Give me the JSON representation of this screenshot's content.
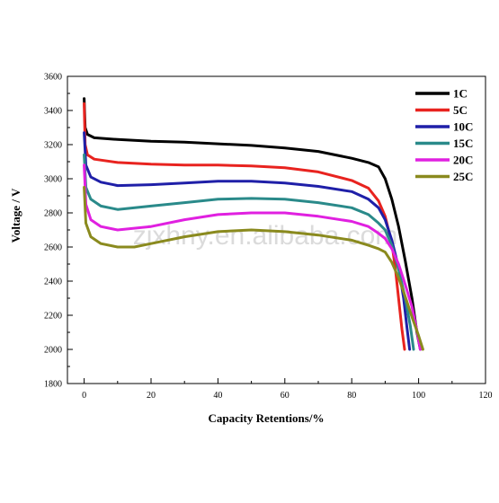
{
  "chart_data": {
    "type": "line",
    "xlabel": "Capacity Retentions/%",
    "ylabel": "Voltage / V",
    "xlim": [
      -5,
      120
    ],
    "ylim": [
      1800,
      3600
    ],
    "x_ticks": [
      0,
      20,
      40,
      60,
      80,
      100,
      120
    ],
    "y_ticks": [
      1800,
      2000,
      2200,
      2400,
      2600,
      2800,
      3000,
      3200,
      3400,
      3600
    ],
    "grid": false,
    "legend_position": "top-right",
    "watermark": "zjxhny.en.alibaba.com",
    "series": [
      {
        "name": "1C",
        "color": "#000000",
        "points": [
          [
            0,
            3470
          ],
          [
            0.3,
            3300
          ],
          [
            1,
            3260
          ],
          [
            3,
            3240
          ],
          [
            10,
            3230
          ],
          [
            20,
            3220
          ],
          [
            30,
            3215
          ],
          [
            40,
            3205
          ],
          [
            50,
            3195
          ],
          [
            60,
            3180
          ],
          [
            70,
            3160
          ],
          [
            80,
            3120
          ],
          [
            85,
            3095
          ],
          [
            88,
            3070
          ],
          [
            90,
            3000
          ],
          [
            92,
            2880
          ],
          [
            94,
            2720
          ],
          [
            96,
            2520
          ],
          [
            98,
            2300
          ],
          [
            99.5,
            2100
          ],
          [
            100.5,
            2000
          ]
        ]
      },
      {
        "name": "5C",
        "color": "#e8231f",
        "points": [
          [
            0,
            3440
          ],
          [
            0.3,
            3200
          ],
          [
            1,
            3140
          ],
          [
            3,
            3115
          ],
          [
            10,
            3095
          ],
          [
            20,
            3085
          ],
          [
            30,
            3080
          ],
          [
            40,
            3080
          ],
          [
            50,
            3075
          ],
          [
            60,
            3065
          ],
          [
            70,
            3040
          ],
          [
            80,
            2990
          ],
          [
            85,
            2945
          ],
          [
            88,
            2870
          ],
          [
            90,
            2780
          ],
          [
            92,
            2620
          ],
          [
            93,
            2480
          ],
          [
            94,
            2300
          ],
          [
            95,
            2120
          ],
          [
            95.8,
            2000
          ]
        ]
      },
      {
        "name": "10C",
        "color": "#1f1fa8",
        "points": [
          [
            0,
            3270
          ],
          [
            0.5,
            3080
          ],
          [
            2,
            3010
          ],
          [
            5,
            2980
          ],
          [
            10,
            2960
          ],
          [
            20,
            2965
          ],
          [
            30,
            2975
          ],
          [
            40,
            2985
          ],
          [
            50,
            2985
          ],
          [
            60,
            2975
          ],
          [
            70,
            2955
          ],
          [
            80,
            2925
          ],
          [
            85,
            2880
          ],
          [
            88,
            2830
          ],
          [
            90,
            2760
          ],
          [
            92,
            2640
          ],
          [
            94,
            2480
          ],
          [
            95.5,
            2300
          ],
          [
            96.5,
            2130
          ],
          [
            97.3,
            2000
          ]
        ]
      },
      {
        "name": "15C",
        "color": "#2a8a8a",
        "points": [
          [
            0,
            3140
          ],
          [
            0.5,
            2950
          ],
          [
            2,
            2880
          ],
          [
            5,
            2840
          ],
          [
            10,
            2820
          ],
          [
            20,
            2840
          ],
          [
            30,
            2860
          ],
          [
            40,
            2880
          ],
          [
            50,
            2885
          ],
          [
            60,
            2880
          ],
          [
            70,
            2860
          ],
          [
            80,
            2830
          ],
          [
            85,
            2790
          ],
          [
            88,
            2740
          ],
          [
            90,
            2700
          ],
          [
            92,
            2610
          ],
          [
            94,
            2470
          ],
          [
            96,
            2300
          ],
          [
            97.5,
            2140
          ],
          [
            98.5,
            2000
          ]
        ]
      },
      {
        "name": "20C",
        "color": "#e020e0",
        "points": [
          [
            0,
            3080
          ],
          [
            0.5,
            2850
          ],
          [
            2,
            2760
          ],
          [
            5,
            2720
          ],
          [
            10,
            2700
          ],
          [
            20,
            2720
          ],
          [
            30,
            2760
          ],
          [
            40,
            2790
          ],
          [
            50,
            2800
          ],
          [
            60,
            2800
          ],
          [
            70,
            2780
          ],
          [
            80,
            2750
          ],
          [
            85,
            2720
          ],
          [
            88,
            2680
          ],
          [
            90,
            2650
          ],
          [
            92,
            2590
          ],
          [
            94,
            2500
          ],
          [
            96,
            2380
          ],
          [
            98,
            2250
          ],
          [
            99.5,
            2110
          ],
          [
            100.5,
            2000
          ]
        ]
      },
      {
        "name": "25C",
        "color": "#8a8a1e",
        "points": [
          [
            0,
            2950
          ],
          [
            0.5,
            2740
          ],
          [
            2,
            2660
          ],
          [
            5,
            2620
          ],
          [
            10,
            2600
          ],
          [
            15,
            2600
          ],
          [
            20,
            2620
          ],
          [
            30,
            2660
          ],
          [
            40,
            2690
          ],
          [
            50,
            2700
          ],
          [
            60,
            2690
          ],
          [
            70,
            2670
          ],
          [
            80,
            2640
          ],
          [
            85,
            2610
          ],
          [
            88,
            2590
          ],
          [
            90,
            2570
          ],
          [
            92,
            2510
          ],
          [
            94,
            2420
          ],
          [
            96,
            2310
          ],
          [
            98,
            2190
          ],
          [
            100,
            2080
          ],
          [
            101.3,
            2000
          ]
        ]
      }
    ]
  }
}
